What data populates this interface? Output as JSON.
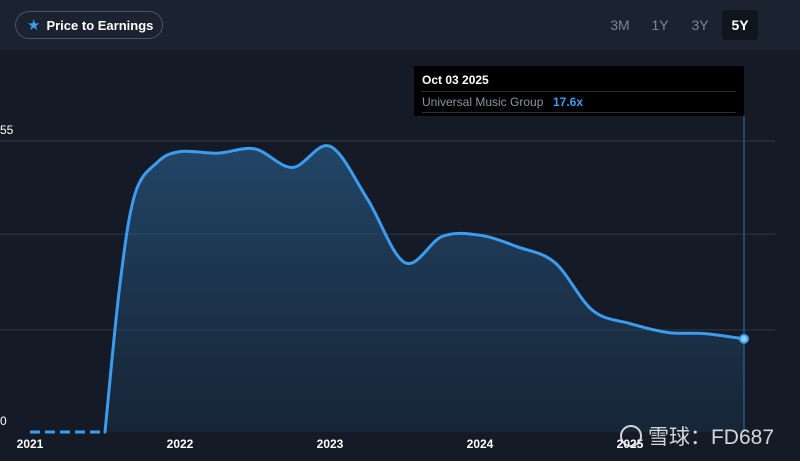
{
  "toolbar": {
    "metric_label": "Price to Earnings",
    "ranges": [
      {
        "label": "3M",
        "active": false
      },
      {
        "label": "1Y",
        "active": false
      },
      {
        "label": "3Y",
        "active": false
      },
      {
        "label": "5Y",
        "active": true
      }
    ]
  },
  "tooltip": {
    "date": "Oct 03 2025",
    "series_name": "Universal Music Group",
    "value": "17.6x"
  },
  "watermark": "雪球：FD687",
  "colors": {
    "accent": "#3b9cf0",
    "background": "#151b26",
    "tooltip_bg": "#000000"
  },
  "chart_data": {
    "type": "area",
    "title": "",
    "xlabel": "",
    "ylabel": "",
    "ytick_labels": [
      "55",
      "0"
    ],
    "ylim": [
      0,
      55
    ],
    "x_tick_labels": [
      "2021",
      "2022",
      "2023",
      "2024",
      "2025"
    ],
    "xlim": [
      2021.0,
      2025.8
    ],
    "grid": true,
    "series": [
      {
        "name": "Universal Music Group",
        "points": [
          [
            2021.0,
            0
          ],
          [
            2021.5,
            0
          ],
          [
            2021.6,
            28
          ],
          [
            2021.7,
            45
          ],
          [
            2021.85,
            51
          ],
          [
            2022.0,
            53
          ],
          [
            2022.25,
            52.7
          ],
          [
            2022.5,
            53.5
          ],
          [
            2022.75,
            50
          ],
          [
            2023.0,
            54
          ],
          [
            2023.25,
            44
          ],
          [
            2023.5,
            32
          ],
          [
            2023.75,
            37
          ],
          [
            2024.0,
            37.2
          ],
          [
            2024.25,
            35
          ],
          [
            2024.5,
            32
          ],
          [
            2024.75,
            23
          ],
          [
            2025.0,
            20.5
          ],
          [
            2025.25,
            18.8
          ],
          [
            2025.5,
            18.6
          ],
          [
            2025.76,
            17.6
          ]
        ],
        "pre_listing_dashed_until": 2021.5
      }
    ],
    "highlighted_point": {
      "x": 2025.76,
      "y": 17.6
    }
  }
}
